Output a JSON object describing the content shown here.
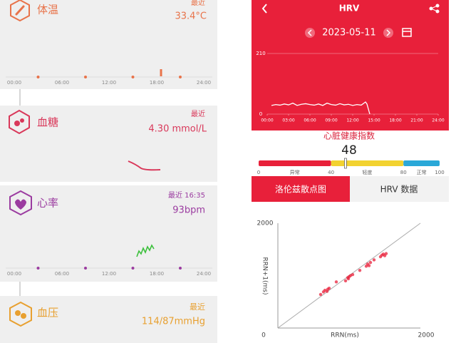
{
  "cards": [
    {
      "title": "体温",
      "latest": "最近",
      "value": "33.4°C",
      "axis": [
        "00:00",
        "06:00",
        "12:00",
        "18:00",
        "24:00"
      ]
    },
    {
      "title": "血糖",
      "latest": "最近",
      "value": "4.30 mmol/L"
    },
    {
      "title": "心率",
      "latest": "最近 16:35",
      "value": "93bpm",
      "axis": [
        "00:00",
        "06:00",
        "12:00",
        "18:00",
        "24:00"
      ]
    },
    {
      "title": "血压",
      "latest": "最近",
      "value": "114/87mmHg"
    }
  ],
  "hrv": {
    "title": "HRV",
    "date": "2023-05-11",
    "ylim": [
      0,
      210
    ],
    "yticks": [
      0,
      210
    ],
    "xlim": [
      0,
      24
    ],
    "xticks": [
      {
        "value": 0,
        "label": "00:00"
      },
      {
        "value": 3,
        "label": "03:00"
      },
      {
        "value": 6,
        "label": "06:00"
      },
      {
        "value": 9,
        "label": "09:00"
      },
      {
        "value": 12,
        "label": "12:00"
      },
      {
        "value": 15,
        "label": "15:00"
      },
      {
        "value": 18,
        "label": "18:00"
      },
      {
        "value": 21,
        "label": "21:00"
      },
      {
        "value": 24,
        "label": "24:00"
      }
    ],
    "x": [
      0.6,
      1.2,
      1.8,
      2.4,
      3,
      3.6,
      4.2,
      4.8,
      5.4,
      6,
      6.6,
      7.2,
      7.8,
      8.4,
      9,
      9.6,
      10.2,
      10.8,
      11.4,
      12,
      12.6,
      13.2,
      13.8,
      14,
      14.4
    ],
    "values": [
      30,
      33,
      31,
      35,
      32,
      38,
      30,
      34,
      36,
      33,
      31,
      35,
      30,
      38,
      33,
      31,
      36,
      32,
      34,
      30,
      33,
      31,
      42,
      35,
      0
    ]
  },
  "index": {
    "title": "心脏健康指数",
    "value": 48,
    "ticks": [
      0,
      40,
      80,
      100
    ],
    "zones": [
      "异常",
      "轻度",
      "正常"
    ]
  },
  "tabs": [
    "洛伦兹散点图",
    "HRV 数据"
  ],
  "lorenz": {
    "xlabel": "RRN(ms)",
    "ylabel": "RRN+1(ms)",
    "xlim": [
      0,
      2000
    ],
    "ylim": [
      0,
      2000
    ],
    "x": [
      600,
      640,
      660,
      690,
      700,
      950,
      980,
      1000,
      1020,
      1050,
      990,
      1240,
      1260,
      1280,
      1300,
      1440,
      1460,
      1480,
      1500,
      1520,
      820,
      1150,
      720,
      1350
    ],
    "y": [
      640,
      690,
      720,
      700,
      740,
      900,
      960,
      980,
      1000,
      1020,
      940,
      1180,
      1220,
      1190,
      1250,
      1360,
      1390,
      1410,
      1380,
      1420,
      880,
      1100,
      760,
      1300
    ]
  }
}
